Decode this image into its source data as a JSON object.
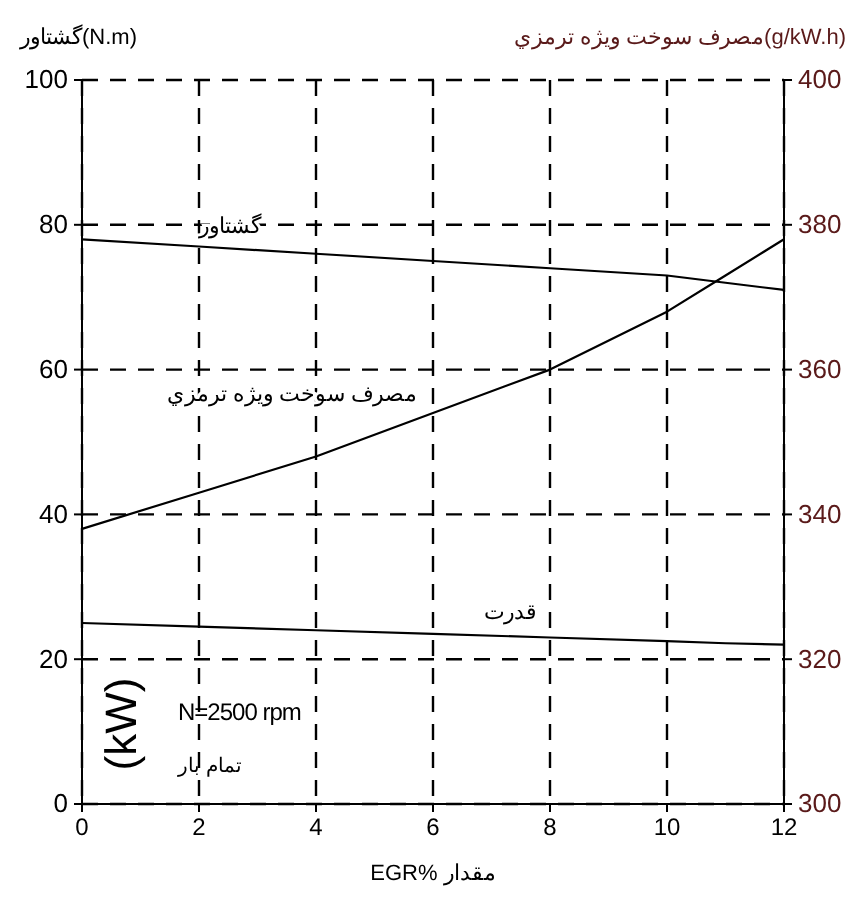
{
  "chart_data": {
    "type": "line",
    "xlabel": "مقدار %EGR",
    "ylabel": "گشتاور(N.m)",
    "y2label": "مصرف سوخت ویژه ترمزي(g/kW.h)",
    "x": [
      0,
      2,
      4,
      6,
      8,
      10,
      11,
      12
    ],
    "series": [
      {
        "name": "گشتاور",
        "color": "#000000",
        "values": [
          78,
          77,
          76,
          75,
          74,
          73,
          72,
          71
        ]
      },
      {
        "name": "مصرف سوخت ویژه ترمزي",
        "color": "#000000",
        "axis": "y2",
        "values": [
          338,
          343,
          348,
          354,
          360,
          368,
          373,
          378
        ]
      },
      {
        "name": "قدرت",
        "color": "#000000",
        "values": [
          25,
          24.5,
          24,
          23.5,
          23,
          22.5,
          22.2,
          22
        ]
      }
    ],
    "xlim": [
      0,
      12
    ],
    "xticks": [
      0,
      2,
      4,
      6,
      8,
      10,
      12
    ],
    "ylim": [
      0,
      100
    ],
    "yticks": [
      0,
      20,
      40,
      60,
      80,
      100
    ],
    "y2lim": [
      300,
      400
    ],
    "y2ticks": [
      300,
      320,
      340,
      360,
      380,
      400
    ],
    "grid": true,
    "line_style": "solid",
    "marker": "none",
    "annotations": [
      "(kW)",
      "N=2500 rpm",
      "تمام بار"
    ]
  }
}
